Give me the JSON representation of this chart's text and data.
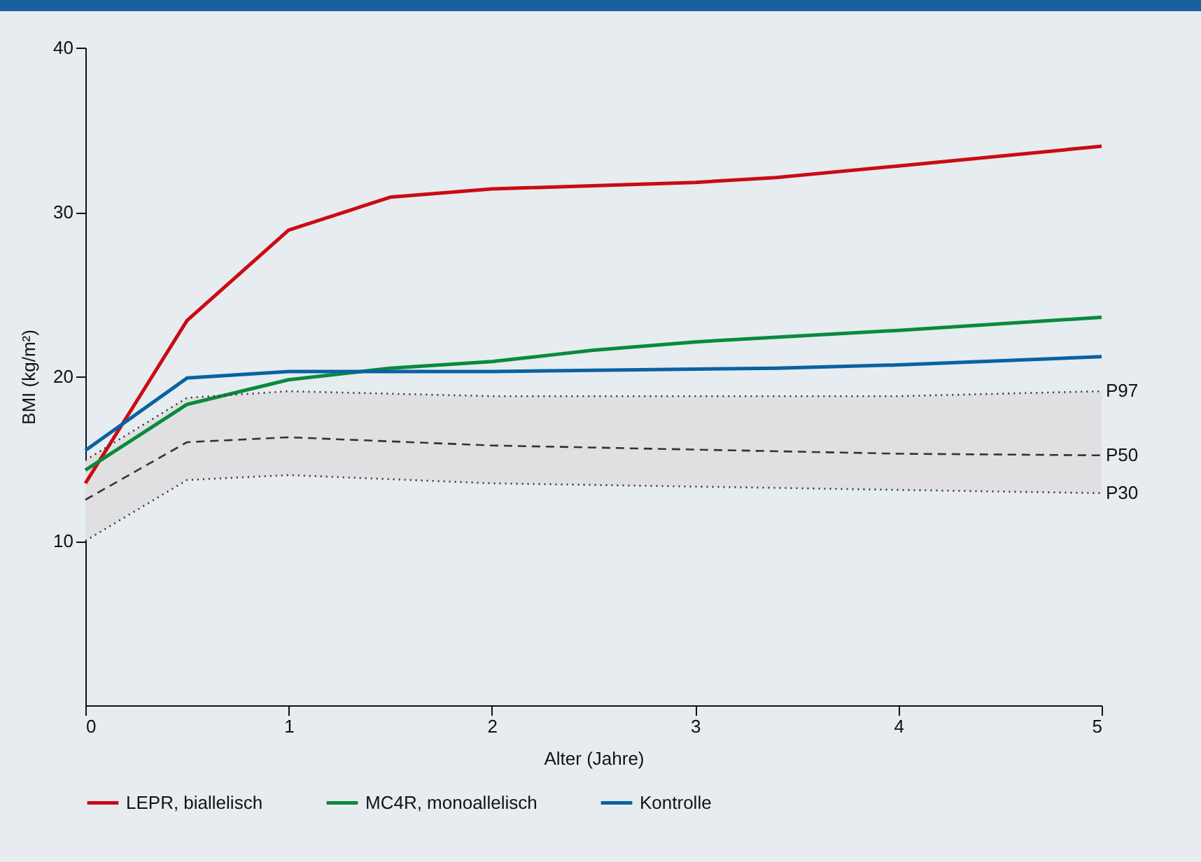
{
  "chart_data": {
    "type": "line",
    "xlabel": "Alter (Jahre)",
    "ylabel": "BMI (kg/m²)",
    "xlim": [
      0,
      5
    ],
    "xticks": [
      0,
      1,
      2,
      3,
      4,
      5
    ],
    "ylim": [
      0,
      40
    ],
    "yticks": [
      10,
      20,
      30,
      40
    ],
    "grid": false,
    "legend": "bottom",
    "marker": "none",
    "series": [
      {
        "name": "LEPR, biallelisch",
        "color": "#cc0a14",
        "line_style": "solid",
        "x": [
          0,
          0.5,
          1,
          1.5,
          2,
          3,
          3.4,
          4,
          5
        ],
        "values": [
          13.5,
          23.4,
          28.9,
          30.9,
          31.4,
          31.8,
          32.1,
          32.8,
          34.0
        ]
      },
      {
        "name": "MC4R, monoallelisch",
        "color": "#0a8a3c",
        "line_style": "solid",
        "x": [
          0,
          0.5,
          1,
          1.5,
          2,
          2.5,
          3,
          4,
          5
        ],
        "values": [
          14.3,
          18.3,
          19.8,
          20.5,
          20.9,
          21.6,
          22.1,
          22.8,
          23.6
        ]
      },
      {
        "name": "Kontrolle",
        "color": "#0a62a0",
        "line_style": "solid",
        "x": [
          0,
          0.5,
          1,
          2,
          3.4,
          4,
          5
        ],
        "values": [
          15.5,
          19.9,
          20.3,
          20.3,
          20.5,
          20.7,
          21.2
        ]
      },
      {
        "name": "P97",
        "color": "#333333",
        "line_style": "dotted",
        "x": [
          0,
          0.5,
          1,
          2,
          4,
          5
        ],
        "values": [
          14.9,
          18.7,
          19.1,
          18.8,
          18.8,
          19.1
        ]
      },
      {
        "name": "P50",
        "color": "#333333",
        "line_style": "dashed",
        "x": [
          0,
          0.5,
          1,
          2,
          4,
          5
        ],
        "values": [
          12.5,
          16.0,
          16.3,
          15.8,
          15.3,
          15.2
        ],
        "lower": [
          10.0,
          13.7,
          14.0,
          13.5,
          13.1,
          12.9
        ],
        "upper": [
          14.9,
          18.7,
          19.1,
          18.8,
          18.8,
          19.1
        ]
      },
      {
        "name": "P30",
        "color": "#333333",
        "line_style": "dotted",
        "x": [
          0,
          0.5,
          1,
          2,
          4,
          5
        ],
        "values": [
          10.0,
          13.7,
          14.0,
          13.5,
          13.1,
          12.9
        ]
      }
    ]
  }
}
